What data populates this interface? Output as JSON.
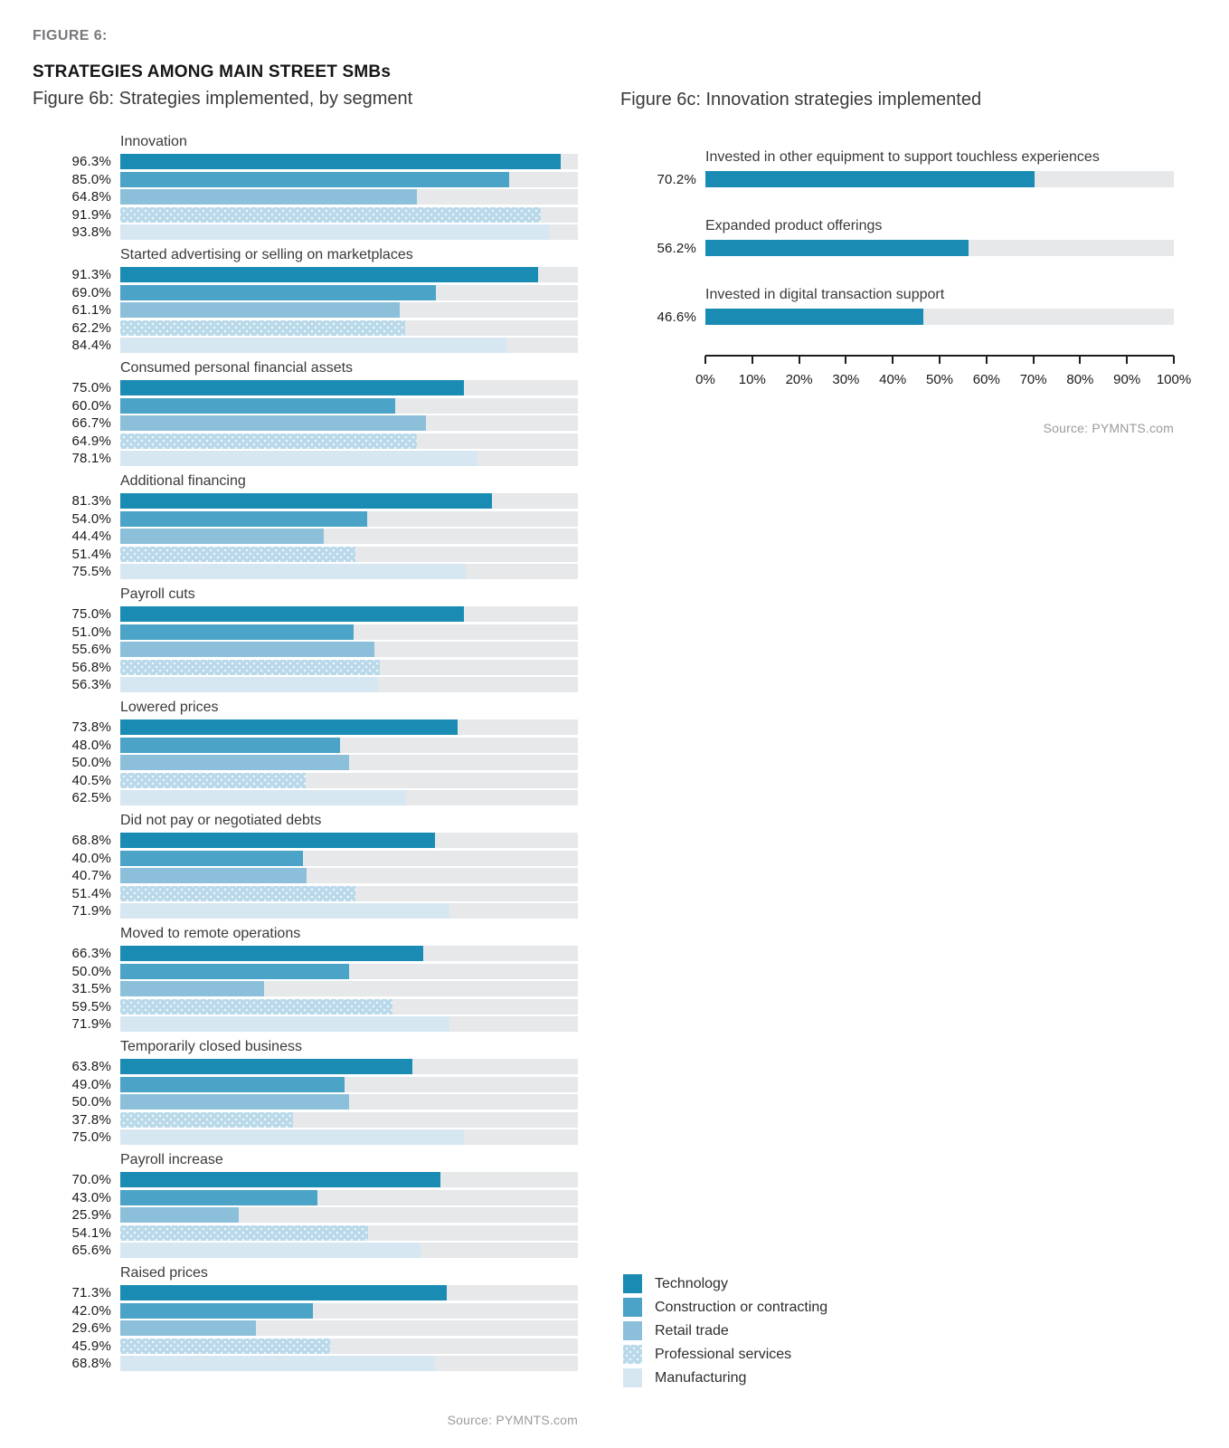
{
  "header": {
    "figure_tag": "FIGURE 6:",
    "title": "STRATEGIES AMONG MAIN STREET SMBs"
  },
  "palette": {
    "track": "#e6e8e9",
    "axis": "#1d1d1f"
  },
  "series": [
    {
      "name": "Technology",
      "color": "#1a8cb4",
      "dotted": false
    },
    {
      "name": "Construction or contracting",
      "color": "#4ba3c7",
      "dotted": false
    },
    {
      "name": "Retail trade",
      "color": "#8cc0da",
      "dotted": false
    },
    {
      "name": "Professional services",
      "color": "#b9d9ea",
      "dotted": true
    },
    {
      "name": "Manufacturing",
      "color": "#d6e7f2",
      "dotted": false
    }
  ],
  "chart_data": [
    {
      "id": "fig6b",
      "type": "bar",
      "orientation": "horizontal",
      "title": "Figure 6b: Strategies implemented, by segment",
      "unit": "%",
      "xlim": [
        0,
        100
      ],
      "grid": false,
      "series_order": [
        "Technology",
        "Construction or contracting",
        "Retail trade",
        "Professional services",
        "Manufacturing"
      ],
      "groups": [
        {
          "category": "Innovation",
          "values": [
            96.3,
            85.0,
            64.8,
            91.9,
            93.8
          ]
        },
        {
          "category": "Started advertising or selling on marketplaces",
          "values": [
            91.3,
            69.0,
            61.1,
            62.2,
            84.4
          ]
        },
        {
          "category": "Consumed personal financial assets",
          "values": [
            75.0,
            60.0,
            66.7,
            64.9,
            78.1
          ]
        },
        {
          "category": "Additional financing",
          "values": [
            81.3,
            54.0,
            44.4,
            51.4,
            75.5
          ]
        },
        {
          "category": "Payroll cuts",
          "values": [
            75.0,
            51.0,
            55.6,
            56.8,
            56.3
          ]
        },
        {
          "category": "Lowered prices",
          "values": [
            73.8,
            48.0,
            50.0,
            40.5,
            62.5
          ]
        },
        {
          "category": "Did not pay or negotiated debts",
          "values": [
            68.8,
            40.0,
            40.7,
            51.4,
            71.9
          ]
        },
        {
          "category": "Moved to remote operations",
          "values": [
            66.3,
            50.0,
            31.5,
            59.5,
            71.9
          ]
        },
        {
          "category": "Temporarily closed business",
          "values": [
            63.8,
            49.0,
            50.0,
            37.8,
            75.0
          ]
        },
        {
          "category": "Payroll increase",
          "values": [
            70.0,
            43.0,
            25.9,
            54.1,
            65.6
          ]
        },
        {
          "category": "Raised prices",
          "values": [
            71.3,
            42.0,
            29.6,
            45.9,
            68.8
          ]
        }
      ],
      "source": "Source: PYMNTS.com"
    },
    {
      "id": "fig6c",
      "type": "bar",
      "orientation": "horizontal",
      "title": "Figure 6c: Innovation strategies implemented",
      "unit": "%",
      "xlim": [
        0,
        100
      ],
      "grid": false,
      "bars": [
        {
          "label": "Invested in other equipment to support touchless experiences",
          "value": 70.2
        },
        {
          "label": "Expanded product offerings",
          "value": 56.2
        },
        {
          "label": "Invested in digital transaction support",
          "value": 46.6
        }
      ],
      "axis_ticks": [
        "0%",
        "10%",
        "20%",
        "30%",
        "40%",
        "50%",
        "60%",
        "70%",
        "80%",
        "90%",
        "100%"
      ],
      "source": "Source: PYMNTS.com"
    }
  ],
  "legend": {
    "items": [
      "Technology",
      "Construction or contracting",
      "Retail trade",
      "Professional services",
      "Manufacturing"
    ]
  }
}
